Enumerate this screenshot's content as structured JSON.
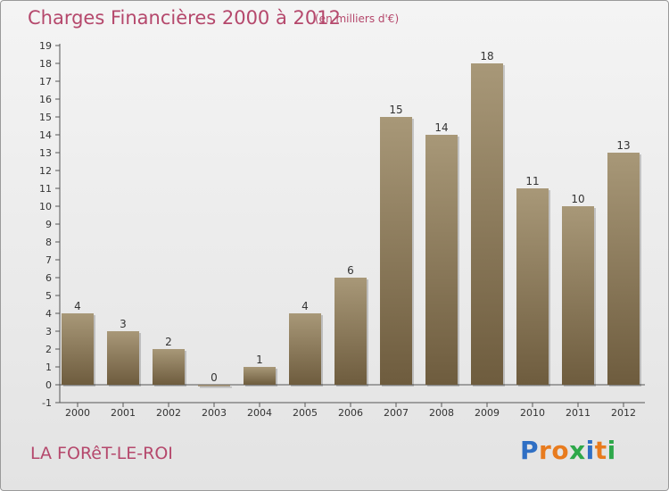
{
  "header": {
    "title": "Charges Financières 2000 à 2012",
    "subtitle": "(en milliers d'€)"
  },
  "footer": {
    "place": "LA FORêT-LE-ROI",
    "logo_text": "Proxiti"
  },
  "colors": {
    "bar_light": "#a89878",
    "bar_dark": "#6e5c3e",
    "text_accent": "#b5486c",
    "logo_letters": [
      "#2f6fc4",
      "#e87b1e",
      "#e87b1e",
      "#2ea84a",
      "#2f6fc4",
      "#e87b1e",
      "#2ea84a"
    ]
  },
  "chart_data": {
    "type": "bar",
    "categories": [
      "2000",
      "2001",
      "2002",
      "2003",
      "2004",
      "2005",
      "2006",
      "2007",
      "2008",
      "2009",
      "2010",
      "2011",
      "2012"
    ],
    "values": [
      4,
      3,
      2,
      0,
      1,
      4,
      6,
      15,
      14,
      18,
      11,
      10,
      13
    ],
    "data_labels": [
      "4",
      "3",
      "2",
      "0",
      "1",
      "4",
      "6",
      "15",
      "14",
      "18",
      "11",
      "10",
      "13"
    ],
    "y_ticks": [
      "-1",
      "0",
      "1",
      "2",
      "3",
      "4",
      "5",
      "6",
      "7",
      "8",
      "9",
      "10",
      "11",
      "12",
      "13",
      "14",
      "15",
      "16",
      "17",
      "18",
      "19"
    ],
    "ylim": [
      -1,
      19
    ],
    "grid": false,
    "legend": "none"
  }
}
